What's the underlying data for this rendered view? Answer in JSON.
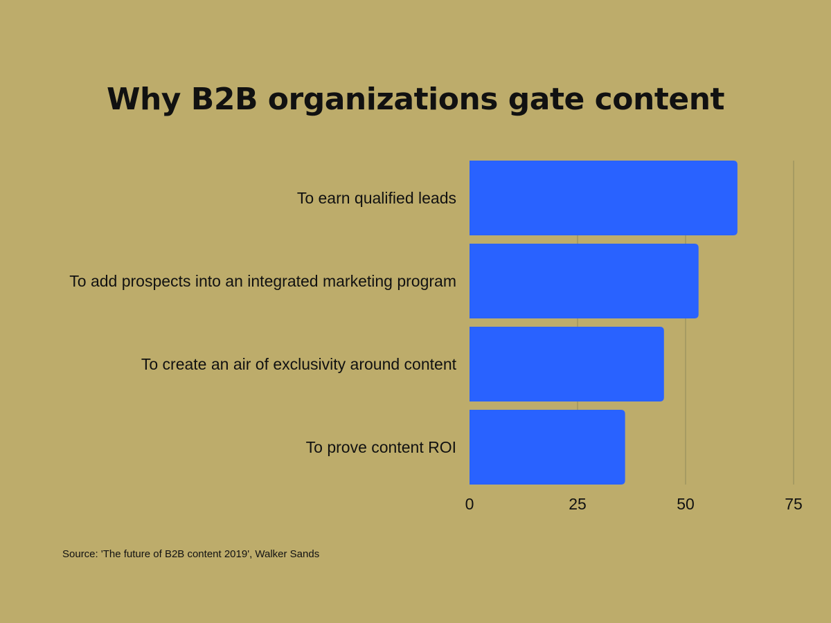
{
  "background_color": "#BDAC6B",
  "bar_color": "#2962FF",
  "grid_color": "#9E9560",
  "chart_data": {
    "type": "bar",
    "orientation": "horizontal",
    "title": "Why B2B organizations gate content",
    "categories": [
      "To earn qualified leads",
      "To add prospects into an integrated marketing program",
      "To create an air of exclusivity around content",
      "To prove content ROI"
    ],
    "values": [
      62,
      53,
      45,
      36
    ],
    "xlim": [
      0,
      75
    ],
    "x_ticks": [
      "0",
      "25",
      "50",
      "75"
    ],
    "grid": true,
    "xlabel": "",
    "ylabel": ""
  },
  "footer": {
    "source": "Source: 'The future of B2B content 2019', Walker Sands"
  }
}
